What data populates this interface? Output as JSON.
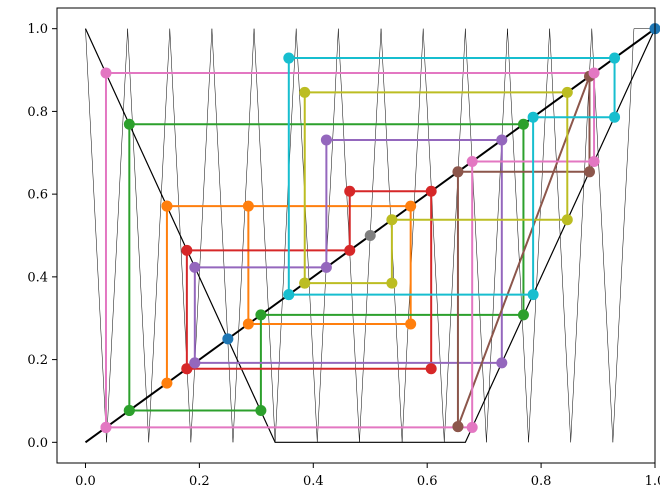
{
  "chart_data": {
    "type": "line",
    "title": "",
    "xlabel": "",
    "ylabel": "",
    "xlim": [
      -0.05,
      1.0
    ],
    "ylim": [
      -0.05,
      1.05
    ],
    "grid": false,
    "x_ticks": [
      "0.0",
      "0.2",
      "0.4",
      "0.6",
      "0.8",
      "1.0"
    ],
    "y_ticks": [
      "0.0",
      "0.2",
      "0.4",
      "0.6",
      "0.8",
      "1.0"
    ],
    "diagonal": {
      "x": [
        0,
        1
      ],
      "y": [
        0,
        1
      ],
      "color": "#000000"
    },
    "tent_map": {
      "x": [
        0,
        0.333,
        0.667,
        1
      ],
      "y": [
        1,
        0,
        0,
        1
      ],
      "color": "#000000"
    },
    "iterated_map": {
      "color": "#000000",
      "x": [
        0,
        0.037,
        0.074,
        0.111,
        0.148,
        0.185,
        0.222,
        0.259,
        0.296,
        0.333,
        0.37,
        0.407,
        0.444,
        0.481,
        0.519,
        0.556,
        0.593,
        0.63,
        0.667,
        0.704,
        0.741,
        0.778,
        0.815,
        0.852,
        0.889,
        0.926,
        0.963,
        1
      ],
      "y": [
        1,
        0,
        1,
        0,
        1,
        0,
        1,
        0,
        1,
        0,
        1,
        0,
        1,
        0,
        1,
        0,
        1,
        0,
        1,
        0,
        1,
        0,
        1,
        0,
        1,
        0,
        1,
        1
      ]
    },
    "fixed_points": [
      {
        "x": 0.25,
        "y": 0.25,
        "color": "#1f77b4"
      },
      {
        "x": 0.5,
        "y": 0.5,
        "color": "#7f7f7f"
      },
      {
        "x": 1.0,
        "y": 1.0,
        "color": "#1f77b4"
      }
    ],
    "series": [
      {
        "color": "#ff7f0e",
        "x": [
          0.143,
          0.143,
          0.286,
          0.286,
          0.571,
          0.571,
          0.143
        ],
        "y": [
          0.143,
          0.571,
          0.571,
          0.286,
          0.286,
          0.571,
          0.571
        ]
      },
      {
        "color": "#2ca02c",
        "x": [
          0.077,
          0.077,
          0.769,
          0.769,
          0.308,
          0.308,
          0.077
        ],
        "y": [
          0.077,
          0.769,
          0.769,
          0.308,
          0.308,
          0.077,
          0.077
        ]
      },
      {
        "color": "#d62728",
        "x": [
          0.178,
          0.178,
          0.464,
          0.464,
          0.607,
          0.607,
          0.178
        ],
        "y": [
          0.178,
          0.464,
          0.464,
          0.607,
          0.607,
          0.178,
          0.178
        ]
      },
      {
        "color": "#9467bd",
        "x": [
          0.192,
          0.192,
          0.423,
          0.423,
          0.731,
          0.731,
          0.192
        ],
        "y": [
          0.192,
          0.423,
          0.423,
          0.731,
          0.731,
          0.192,
          0.192
        ]
      },
      {
        "color": "#8c564b",
        "x": [
          0.654,
          0.654,
          0.885,
          0.885,
          0.654
        ],
        "y": [
          0.038,
          0.654,
          0.654,
          0.885,
          0.038
        ]
      },
      {
        "color": "#e377c2",
        "x": [
          0.036,
          0.036,
          0.893,
          0.893,
          0.679,
          0.679,
          0.036
        ],
        "y": [
          0.036,
          0.893,
          0.893,
          0.679,
          0.679,
          0.036,
          0.036
        ]
      },
      {
        "color": "#bcbd22",
        "x": [
          0.385,
          0.385,
          0.846,
          0.846,
          0.538,
          0.538,
          0.385
        ],
        "y": [
          0.385,
          0.846,
          0.846,
          0.538,
          0.538,
          0.385,
          0.385
        ]
      },
      {
        "color": "#17becf",
        "x": [
          0.357,
          0.357,
          0.929,
          0.929,
          0.786,
          0.786,
          0.357
        ],
        "y": [
          0.357,
          0.929,
          0.929,
          0.786,
          0.786,
          0.357,
          0.357
        ]
      }
    ]
  }
}
